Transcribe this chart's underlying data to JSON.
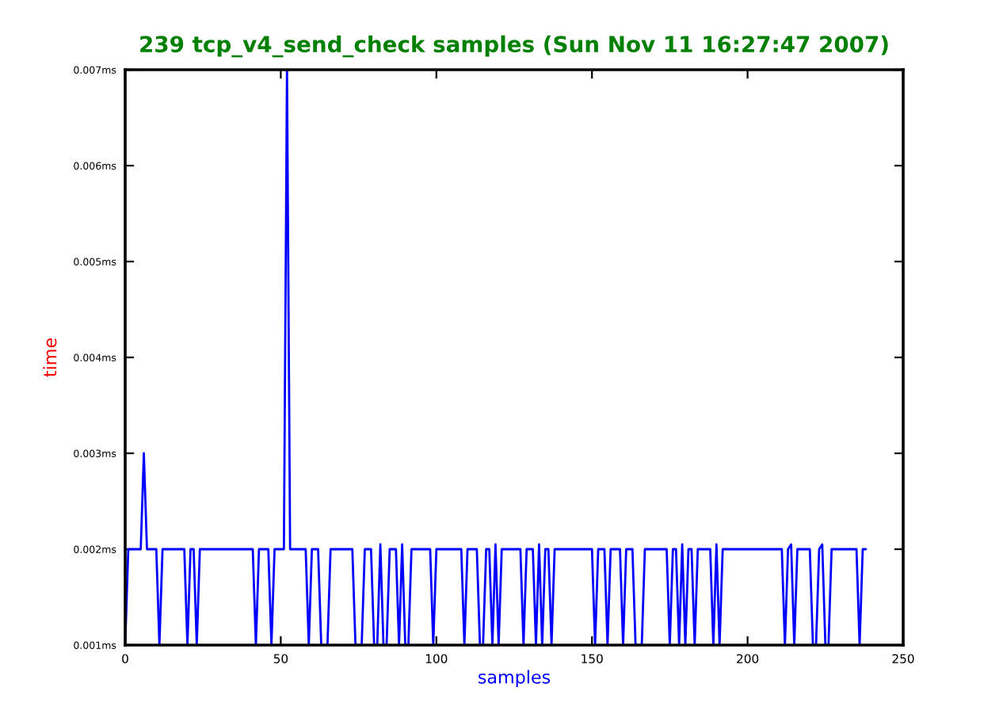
{
  "chart_data": {
    "type": "line",
    "title": "239 tcp_v4_send_check samples (Sun Nov 11 16:27:47 2007)",
    "xlabel": "samples",
    "ylabel": "time",
    "x": [
      0,
      1,
      2,
      3,
      4,
      5,
      6,
      7,
      8,
      9,
      10,
      11,
      12,
      13,
      14,
      15,
      16,
      17,
      18,
      19,
      20,
      21,
      22,
      23,
      24,
      25,
      26,
      27,
      28,
      29,
      30,
      31,
      32,
      33,
      34,
      35,
      36,
      37,
      38,
      39,
      40,
      41,
      42,
      43,
      44,
      45,
      46,
      47,
      48,
      49,
      50,
      51,
      52,
      53,
      54,
      55,
      56,
      57,
      58,
      59,
      60,
      61,
      62,
      63,
      64,
      65,
      66,
      67,
      68,
      69,
      70,
      71,
      72,
      73,
      74,
      75,
      76,
      77,
      78,
      79,
      80,
      81,
      82,
      83,
      84,
      85,
      86,
      87,
      88,
      89,
      90,
      91,
      92,
      93,
      94,
      95,
      96,
      97,
      98,
      99,
      100,
      101,
      102,
      103,
      104,
      105,
      106,
      107,
      108,
      109,
      110,
      111,
      112,
      113,
      114,
      115,
      116,
      117,
      118,
      119,
      120,
      121,
      122,
      123,
      124,
      125,
      126,
      127,
      128,
      129,
      130,
      131,
      132,
      133,
      134,
      135,
      136,
      137,
      138,
      139,
      140,
      141,
      142,
      143,
      144,
      145,
      146,
      147,
      148,
      149,
      150,
      151,
      152,
      153,
      154,
      155,
      156,
      157,
      158,
      159,
      160,
      161,
      162,
      163,
      164,
      165,
      166,
      167,
      168,
      169,
      170,
      171,
      172,
      173,
      174,
      175,
      176,
      177,
      178,
      179,
      180,
      181,
      182,
      183,
      184,
      185,
      186,
      187,
      188,
      189,
      190,
      191,
      192,
      193,
      194,
      195,
      196,
      197,
      198,
      199,
      200,
      201,
      202,
      203,
      204,
      205,
      206,
      207,
      208,
      209,
      210,
      211,
      212,
      213,
      214,
      215,
      216,
      217,
      218,
      219,
      220,
      221,
      222,
      223,
      224,
      225,
      226,
      227,
      228,
      229,
      230,
      231,
      232,
      233,
      234,
      235,
      236,
      237,
      238
    ],
    "series": [
      {
        "color": "#0000ff",
        "values": [
          0.001,
          0.002,
          0.002,
          0.002,
          0.002,
          0.002,
          0.003,
          0.002,
          0.002,
          0.002,
          0.002,
          0.001,
          0.002,
          0.002,
          0.002,
          0.002,
          0.002,
          0.002,
          0.002,
          0.002,
          0.001,
          0.002,
          0.002,
          0.001,
          0.002,
          0.002,
          0.002,
          0.002,
          0.002,
          0.002,
          0.002,
          0.002,
          0.002,
          0.002,
          0.002,
          0.002,
          0.002,
          0.002,
          0.002,
          0.002,
          0.002,
          0.002,
          0.001,
          0.002,
          0.002,
          0.002,
          0.002,
          0.001,
          0.002,
          0.002,
          0.002,
          0.002,
          0.007,
          0.002,
          0.002,
          0.002,
          0.002,
          0.002,
          0.002,
          0.001,
          0.002,
          0.002,
          0.002,
          0.001,
          0.001,
          0.001,
          0.002,
          0.002,
          0.002,
          0.002,
          0.002,
          0.002,
          0.002,
          0.002,
          0.001,
          0.001,
          0.001,
          0.002,
          0.002,
          0.002,
          0.001,
          0.001,
          0.00205,
          0.001,
          0.001,
          0.002,
          0.002,
          0.002,
          0.001,
          0.00205,
          0.001,
          0.001,
          0.002,
          0.002,
          0.002,
          0.002,
          0.002,
          0.002,
          0.002,
          0.001,
          0.002,
          0.002,
          0.002,
          0.002,
          0.002,
          0.002,
          0.002,
          0.002,
          0.002,
          0.001,
          0.002,
          0.002,
          0.002,
          0.002,
          0.001,
          0.001,
          0.002,
          0.002,
          0.001,
          0.00205,
          0.001,
          0.002,
          0.002,
          0.002,
          0.002,
          0.002,
          0.002,
          0.002,
          0.001,
          0.002,
          0.002,
          0.002,
          0.001,
          0.00205,
          0.001,
          0.002,
          0.002,
          0.001,
          0.002,
          0.002,
          0.002,
          0.002,
          0.002,
          0.002,
          0.002,
          0.002,
          0.002,
          0.002,
          0.002,
          0.002,
          0.002,
          0.001,
          0.002,
          0.002,
          0.002,
          0.001,
          0.002,
          0.002,
          0.002,
          0.002,
          0.001,
          0.002,
          0.002,
          0.002,
          0.001,
          0.001,
          0.001,
          0.002,
          0.002,
          0.002,
          0.002,
          0.002,
          0.002,
          0.002,
          0.002,
          0.001,
          0.002,
          0.002,
          0.001,
          0.00205,
          0.001,
          0.002,
          0.002,
          0.001,
          0.002,
          0.002,
          0.002,
          0.002,
          0.002,
          0.001,
          0.00205,
          0.001,
          0.002,
          0.002,
          0.002,
          0.002,
          0.002,
          0.002,
          0.002,
          0.002,
          0.002,
          0.002,
          0.002,
          0.002,
          0.002,
          0.002,
          0.002,
          0.002,
          0.002,
          0.002,
          0.002,
          0.002,
          0.001,
          0.002,
          0.00205,
          0.001,
          0.002,
          0.002,
          0.002,
          0.002,
          0.002,
          0.001,
          0.001,
          0.002,
          0.00205,
          0.001,
          0.001,
          0.002,
          0.002,
          0.002,
          0.002,
          0.002,
          0.002,
          0.002,
          0.002,
          0.002,
          0.001,
          0.002,
          0.002
        ]
      }
    ],
    "xlim": [
      0,
      250
    ],
    "xticks": [
      0,
      50,
      100,
      150,
      200,
      250
    ],
    "ylim": [
      0.001,
      0.007
    ],
    "yticks": [
      {
        "value": 0.001,
        "label": "0.001ms"
      },
      {
        "value": 0.002,
        "label": "0.002ms"
      },
      {
        "value": 0.003,
        "label": "0.003ms"
      },
      {
        "value": 0.004,
        "label": "0.004ms"
      },
      {
        "value": 0.005,
        "label": "0.005ms"
      },
      {
        "value": 0.006,
        "label": "0.006ms"
      },
      {
        "value": 0.007,
        "label": "0.007ms"
      }
    ],
    "grid": false
  }
}
